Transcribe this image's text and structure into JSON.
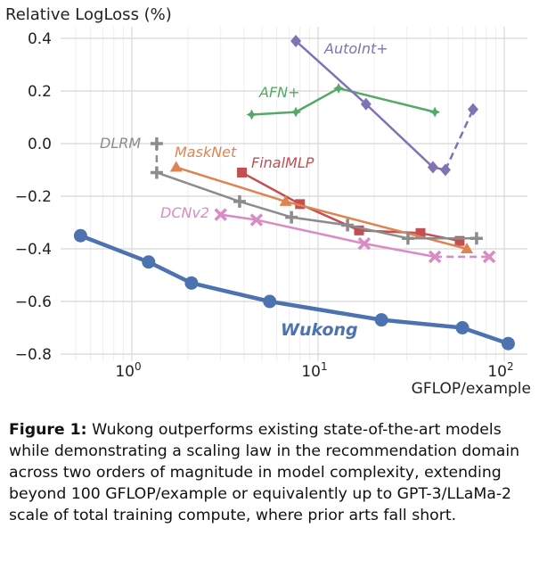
{
  "chart_data": {
    "type": "line",
    "ylabel": "Relative LogLoss (%)",
    "xlabel": "GFLOP/example",
    "xscale": "log",
    "xlim": [
      0.4,
      140
    ],
    "ylim": [
      -0.83,
      0.43
    ],
    "xticks": [
      {
        "v": 1,
        "base": "10",
        "exp": "0"
      },
      {
        "v": 10,
        "base": "10",
        "exp": "1"
      },
      {
        "v": 100,
        "base": "10",
        "exp": "2"
      }
    ],
    "yticks": [
      0.4,
      0.2,
      0.0,
      -0.2,
      -0.4,
      -0.6,
      -0.8
    ],
    "ytick_labels": [
      "0.4",
      "0.2",
      "0.0",
      "−0.2",
      "−0.4",
      "−0.6",
      "−0.8"
    ],
    "grid": true,
    "series": [
      {
        "name": "Wukong",
        "color": "#4c72b0",
        "marker": "circle",
        "x": [
          0.53,
          1.23,
          2.09,
          5.5,
          21.9,
          59.6,
          105
        ],
        "y": [
          -0.35,
          -0.45,
          -0.53,
          -0.6,
          -0.67,
          -0.7,
          -0.76
        ],
        "dashed_from": null
      },
      {
        "name": "AutoInt+",
        "color": "#8172b3",
        "marker": "diamond",
        "x": [
          7.6,
          18.1,
          41.4,
          48.3,
          68
        ],
        "y": [
          0.39,
          0.15,
          -0.09,
          -0.1,
          0.13
        ],
        "dashed_from": 3
      },
      {
        "name": "AFN+",
        "color": "#55a868",
        "marker": "star",
        "x": [
          4.4,
          7.6,
          12.9,
          42.4
        ],
        "y": [
          0.11,
          0.12,
          0.21,
          0.12
        ],
        "dashed_from": null
      },
      {
        "name": "DLRM",
        "color": "#8c8c8c",
        "marker": "plus",
        "x": [
          1.36,
          1.36,
          3.79,
          7.2,
          14.4,
          30.4,
          71
        ],
        "y": [
          0.0,
          -0.11,
          -0.22,
          -0.28,
          -0.31,
          -0.36,
          -0.36
        ],
        "dashed_to": 1
      },
      {
        "name": "MaskNet",
        "color": "#dd8452",
        "marker": "triangle",
        "x": [
          1.73,
          6.7,
          63
        ],
        "y": [
          -0.09,
          -0.22,
          -0.4
        ],
        "dashed_from": null
      },
      {
        "name": "FinalMLP",
        "color": "#c44e52",
        "marker": "square",
        "x": [
          3.9,
          8.0,
          16.6,
          35.5,
          57.6
        ],
        "y": [
          -0.11,
          -0.23,
          -0.33,
          -0.34,
          -0.37
        ],
        "dashed_from": null
      },
      {
        "name": "DCNv2",
        "color": "#da8bc3",
        "marker": "x",
        "x": [
          3.0,
          4.67,
          17.7,
          42.4,
          83
        ],
        "y": [
          -0.27,
          -0.29,
          -0.38,
          -0.43,
          -0.43
        ],
        "dashed_from": 3
      }
    ]
  },
  "caption": {
    "label": "Figure 1:",
    "text": " Wukong outperforms existing state-of-the-art models while demonstrating a scaling law in the recommendation domain across two orders of magnitude in model complexity, extending beyond 100 GFLOP/example or equivalently up to GPT-3/LLaMa-2 scale of total training compute, where prior arts fall short."
  }
}
